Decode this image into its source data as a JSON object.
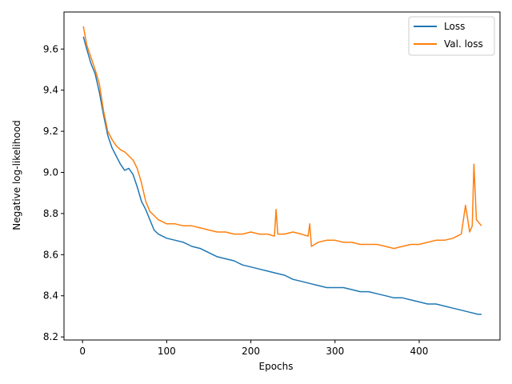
{
  "chart_data": {
    "type": "line",
    "title": "",
    "xlabel": "Epochs",
    "ylabel": "Negative log-likelihood",
    "xlim": [
      -22,
      496
    ],
    "ylim": [
      8.185,
      9.78
    ],
    "xticks": [
      0,
      100,
      200,
      300,
      400
    ],
    "yticks": [
      8.2,
      8.4,
      8.6,
      8.8,
      9.0,
      9.2,
      9.4,
      9.6
    ],
    "ytick_labels": [
      "8.2",
      "8.4",
      "8.6",
      "8.8",
      "9.0",
      "9.2",
      "9.4",
      "9.6"
    ],
    "grid": false,
    "legend_position": "top-right",
    "series": [
      {
        "name": "Loss",
        "color": "#1f77b4",
        "x": [
          1,
          5,
          10,
          15,
          20,
          25,
          30,
          35,
          40,
          45,
          50,
          55,
          60,
          65,
          70,
          75,
          80,
          85,
          90,
          95,
          100,
          110,
          120,
          130,
          140,
          150,
          160,
          170,
          180,
          190,
          200,
          210,
          220,
          230,
          240,
          250,
          260,
          270,
          280,
          290,
          300,
          310,
          320,
          330,
          340,
          350,
          360,
          370,
          380,
          390,
          400,
          410,
          420,
          430,
          440,
          450,
          460,
          470,
          474
        ],
        "values": [
          9.66,
          9.6,
          9.53,
          9.48,
          9.39,
          9.28,
          9.18,
          9.12,
          9.08,
          9.04,
          9.01,
          9.02,
          8.99,
          8.93,
          8.86,
          8.82,
          8.77,
          8.72,
          8.7,
          8.69,
          8.68,
          8.67,
          8.66,
          8.64,
          8.63,
          8.61,
          8.59,
          8.58,
          8.57,
          8.55,
          8.54,
          8.53,
          8.52,
          8.51,
          8.5,
          8.48,
          8.47,
          8.46,
          8.45,
          8.44,
          8.44,
          8.44,
          8.43,
          8.42,
          8.42,
          8.41,
          8.4,
          8.39,
          8.39,
          8.38,
          8.37,
          8.36,
          8.36,
          8.35,
          8.34,
          8.33,
          8.32,
          8.31,
          8.31
        ]
      },
      {
        "name": "Val. loss",
        "color": "#ff7f0e",
        "x": [
          1,
          5,
          10,
          15,
          20,
          25,
          30,
          35,
          40,
          45,
          50,
          55,
          60,
          65,
          70,
          75,
          80,
          85,
          90,
          95,
          100,
          110,
          120,
          130,
          140,
          150,
          160,
          170,
          180,
          190,
          200,
          210,
          220,
          228,
          230,
          232,
          240,
          250,
          260,
          268,
          270,
          272,
          280,
          290,
          300,
          310,
          320,
          330,
          340,
          350,
          360,
          370,
          380,
          390,
          400,
          410,
          420,
          430,
          440,
          450,
          455,
          460,
          463,
          465,
          468,
          470,
          474
        ],
        "values": [
          9.71,
          9.62,
          9.56,
          9.5,
          9.43,
          9.3,
          9.2,
          9.16,
          9.13,
          9.11,
          9.1,
          9.08,
          9.06,
          9.02,
          8.95,
          8.86,
          8.81,
          8.79,
          8.77,
          8.76,
          8.75,
          8.75,
          8.74,
          8.74,
          8.73,
          8.72,
          8.71,
          8.71,
          8.7,
          8.7,
          8.71,
          8.7,
          8.7,
          8.69,
          8.82,
          8.7,
          8.7,
          8.71,
          8.7,
          8.69,
          8.75,
          8.64,
          8.66,
          8.67,
          8.67,
          8.66,
          8.66,
          8.65,
          8.65,
          8.65,
          8.64,
          8.63,
          8.64,
          8.65,
          8.65,
          8.66,
          8.67,
          8.67,
          8.68,
          8.7,
          8.84,
          8.71,
          8.74,
          9.04,
          8.77,
          8.76,
          8.74
        ]
      }
    ]
  }
}
